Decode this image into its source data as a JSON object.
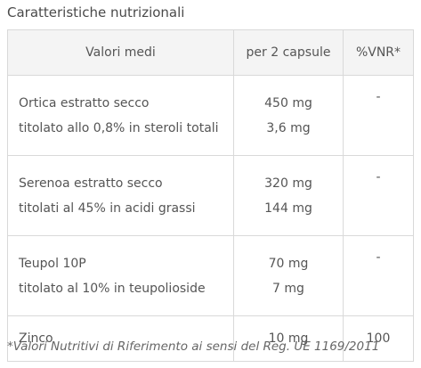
{
  "title": "Caratteristiche nutrizionali",
  "table": {
    "header": [
      "Valori medi",
      "per 2 capsule",
      "%VNR*"
    ],
    "rows": [
      {
        "name": [
          "Ortica estratto secco",
          "titolato allo 0,8% in steroli totali"
        ],
        "amount": [
          "450 mg",
          "3,6 mg"
        ],
        "vnr": "-"
      },
      {
        "name": [
          "Serenoa estratto secco",
          "titolati al 45% in acidi grassi"
        ],
        "amount": [
          "320 mg",
          "144 mg"
        ],
        "vnr": "-"
      },
      {
        "name": [
          "Teupol 10P",
          "titolato al 10% in teupolioside"
        ],
        "amount": [
          "70 mg",
          "7 mg"
        ],
        "vnr": "-"
      },
      {
        "name": [
          "Zinco"
        ],
        "amount": [
          "10 mg"
        ],
        "vnr": "100"
      }
    ]
  },
  "footnote": "*Valori Nutritivi di Riferimento ai sensi del Reg. UE 1169/2011"
}
